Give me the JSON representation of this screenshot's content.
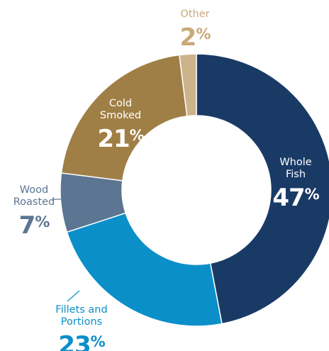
{
  "chart_data": {
    "type": "pie",
    "slices": [
      {
        "label_lines": [
          "Whole",
          "Fish"
        ],
        "value": 47,
        "pct_text": "47",
        "color": "#1a3a66"
      },
      {
        "label_lines": [
          "Fillets and",
          "Portions"
        ],
        "value": 23,
        "pct_text": "23",
        "color": "#0b8fc9"
      },
      {
        "label_lines": [
          "Wood",
          "Roasted"
        ],
        "value": 7,
        "pct_text": "7",
        "color": "#5b7592"
      },
      {
        "label_lines": [
          "Cold",
          "Smoked"
        ],
        "value": 21,
        "pct_text": "21",
        "color": "#a07f46"
      },
      {
        "label_lines": [
          "Other"
        ],
        "value": 2,
        "pct_text": "2",
        "color": "#cdb38b"
      }
    ],
    "percent_symbol": "%",
    "label_colors": {
      "inside": "#ffffff",
      "Wood Roasted": "#5b7592",
      "Fillets and Portions": "#0b8fc9",
      "Other": "#c9a978"
    },
    "start_angle_deg": 0,
    "direction": "clockwise",
    "donut": true
  }
}
